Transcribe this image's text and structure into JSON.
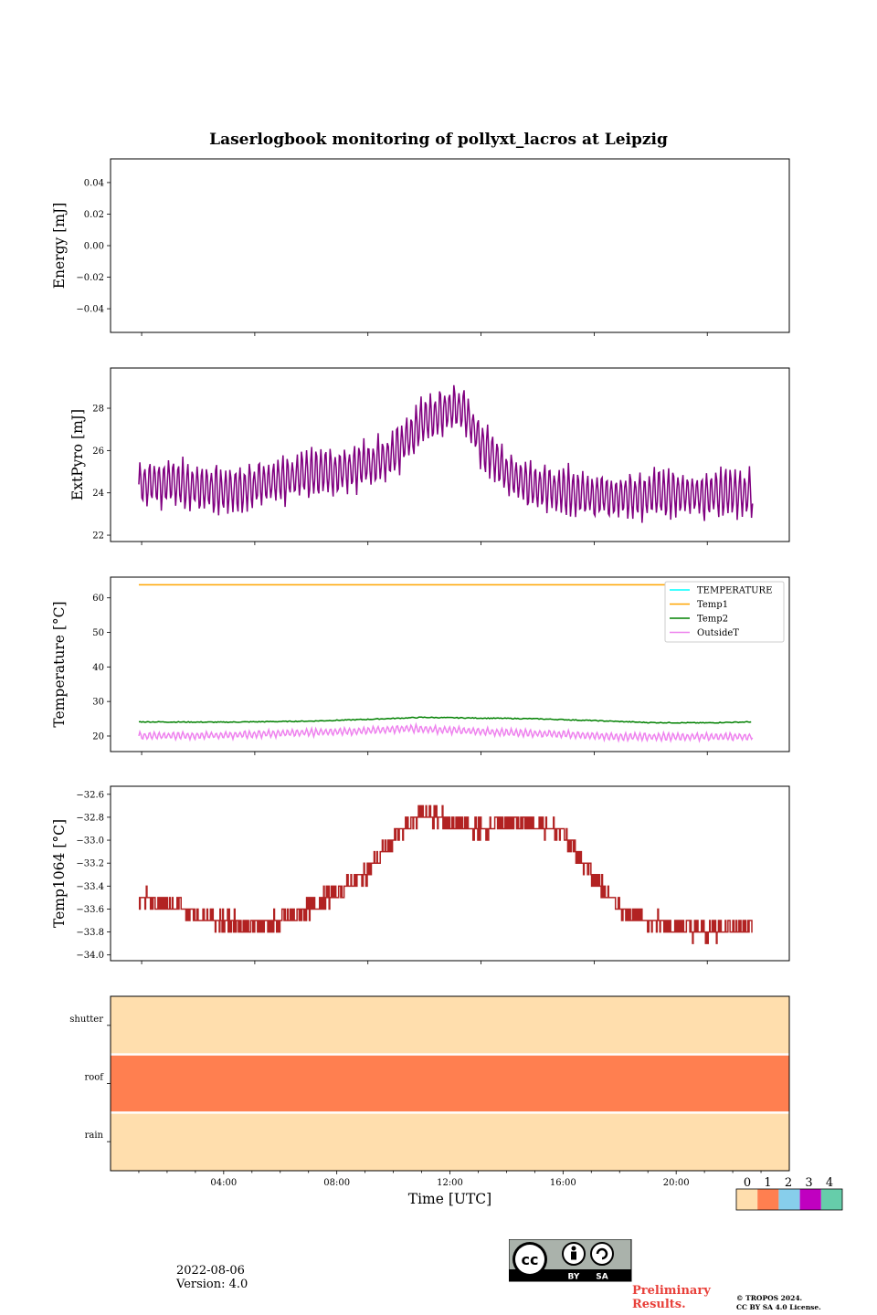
{
  "chart_data": [
    {
      "type": "line",
      "panel": "energy",
      "title": "Laserlogbook monitoring of pollyxt_lacros at Leipzig",
      "ylabel": "Energy [mJ]",
      "ylim": [
        -0.055,
        0.055
      ],
      "yticks": [
        0.04,
        0.02,
        0.0,
        -0.02,
        -0.04
      ],
      "yticklabels": [
        "0.04",
        "0.02",
        "0.00",
        "−0.02",
        "−0.04"
      ],
      "series": []
    },
    {
      "type": "line",
      "panel": "extpyro",
      "ylabel": "ExtPyro [mJ]",
      "ylim": [
        21.7,
        29.9
      ],
      "yticks": [
        22,
        24,
        26,
        28
      ],
      "yticklabels": [
        "22",
        "24",
        "26",
        "28"
      ],
      "series": [
        {
          "color": "#800080",
          "x": [
            1.0,
            22.7
          ],
          "trend": [
            [
              1.0,
              24.4
            ],
            [
              2.0,
              24.5
            ],
            [
              3.0,
              24.3
            ],
            [
              4.0,
              24.1
            ],
            [
              5.0,
              24.3
            ],
            [
              6.0,
              24.6
            ],
            [
              7.0,
              24.9
            ],
            [
              8.0,
              25.0
            ],
            [
              9.0,
              25.3
            ],
            [
              10.0,
              25.8
            ],
            [
              11.0,
              27.3
            ],
            [
              12.0,
              28.0
            ],
            [
              12.5,
              27.9
            ],
            [
              13.0,
              26.6
            ],
            [
              14.0,
              24.9
            ],
            [
              15.0,
              24.3
            ],
            [
              16.0,
              24.1
            ],
            [
              17.0,
              23.9
            ],
            [
              18.0,
              23.9
            ],
            [
              19.0,
              23.9
            ],
            [
              20.0,
              24.0
            ],
            [
              21.0,
              23.9
            ],
            [
              22.0,
              24.0
            ],
            [
              22.7,
              24.0
            ]
          ],
          "amplitude": 1.2
        }
      ]
    },
    {
      "type": "line",
      "panel": "temperature",
      "ylabel": "Temperature [°C]",
      "ylim": [
        15.5,
        66
      ],
      "yticks": [
        20,
        30,
        40,
        50,
        60
      ],
      "yticklabels": [
        "20",
        "30",
        "40",
        "50",
        "60"
      ],
      "legend": "top-right",
      "series": [
        {
          "name": "TEMPERATURE",
          "color": "#00ffff",
          "points": []
        },
        {
          "name": "Temp1",
          "color": "#ffa500",
          "points": [
            [
              1.0,
              63.8
            ],
            [
              22.7,
              63.8
            ]
          ]
        },
        {
          "name": "Temp2",
          "color": "#008000",
          "points": [
            [
              1.0,
              24.1
            ],
            [
              4.0,
              24.0
            ],
            [
              7.0,
              24.3
            ],
            [
              9.0,
              24.8
            ],
            [
              11.0,
              25.4
            ],
            [
              13.0,
              25.2
            ],
            [
              15.0,
              25.0
            ],
            [
              17.0,
              24.5
            ],
            [
              19.0,
              23.9
            ],
            [
              21.0,
              23.8
            ],
            [
              22.7,
              24.1
            ]
          ]
        },
        {
          "name": "OutsideT",
          "color": "#ee82ee",
          "trend": [
            [
              1.0,
              20.0
            ],
            [
              4.0,
              20.2
            ],
            [
              7.0,
              21.0
            ],
            [
              9.0,
              21.5
            ],
            [
              10.5,
              22.2
            ],
            [
              12.0,
              21.7
            ],
            [
              14.0,
              21.0
            ],
            [
              16.0,
              20.5
            ],
            [
              18.0,
              19.8
            ],
            [
              20.0,
              19.8
            ],
            [
              22.7,
              19.8
            ]
          ],
          "amplitude": 1.1
        }
      ]
    },
    {
      "type": "line",
      "panel": "temp1064",
      "ylabel": "Temp1064 [°C]",
      "ylim": [
        -34.05,
        -32.53
      ],
      "yticks": [
        -32.6,
        -32.8,
        -33.0,
        -33.2,
        -33.4,
        -33.6,
        -33.8,
        -34.0
      ],
      "yticklabels": [
        "−32.6",
        "−32.8",
        "−33.0",
        "−33.2",
        "−33.4",
        "−33.6",
        "−33.8",
        "−34.0"
      ],
      "series": [
        {
          "color": "#b22222",
          "trend": [
            [
              1.0,
              -33.5
            ],
            [
              2.0,
              -33.55
            ],
            [
              3.0,
              -33.65
            ],
            [
              4.0,
              -33.7
            ],
            [
              5.0,
              -33.75
            ],
            [
              6.0,
              -33.7
            ],
            [
              7.0,
              -33.6
            ],
            [
              8.0,
              -33.45
            ],
            [
              9.0,
              -33.3
            ],
            [
              10.0,
              -33.0
            ],
            [
              11.0,
              -32.75
            ],
            [
              12.0,
              -32.85
            ],
            [
              13.0,
              -32.9
            ],
            [
              14.0,
              -32.85
            ],
            [
              15.0,
              -32.85
            ],
            [
              16.0,
              -32.95
            ],
            [
              17.0,
              -33.3
            ],
            [
              18.0,
              -33.6
            ],
            [
              19.0,
              -33.7
            ],
            [
              20.0,
              -33.75
            ],
            [
              21.0,
              -33.8
            ],
            [
              22.0,
              -33.75
            ],
            [
              22.7,
              -33.75
            ]
          ],
          "step": 0.1
        }
      ]
    },
    {
      "type": "heatmap",
      "panel": "status",
      "xlabel": "Time [UTC]",
      "xlim": [
        0,
        24
      ],
      "xticks": [
        4,
        8,
        12,
        16,
        20
      ],
      "xticklabels": [
        "04:00",
        "08:00",
        "12:00",
        "16:00",
        "20:00"
      ],
      "rows": [
        {
          "label": "shutter",
          "value": 0
        },
        {
          "label": "roof",
          "value": 1
        },
        {
          "label": "rain",
          "value": 0
        }
      ],
      "colorbar": {
        "labels": [
          "0",
          "1",
          "2",
          "3",
          "4"
        ],
        "colors": [
          "#ffdead",
          "#ff7f50",
          "#87ceeb",
          "#c000c0",
          "#66cdaa"
        ]
      }
    }
  ],
  "footer": {
    "date": "2022-08-06",
    "version": "Version: 4.0",
    "preliminary": [
      "Preliminary",
      "Results."
    ],
    "copyright": [
      "© TROPOS 2024.",
      "CC BY SA 4.0 License."
    ],
    "license_badge": [
      "BY",
      "SA"
    ]
  }
}
